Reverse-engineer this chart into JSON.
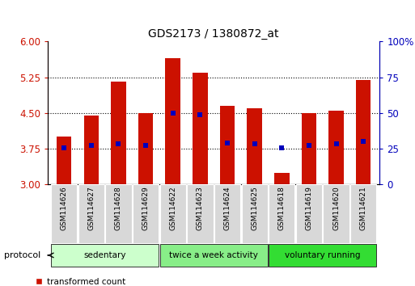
{
  "title": "GDS2173 / 1380872_at",
  "samples": [
    "GSM114626",
    "GSM114627",
    "GSM114628",
    "GSM114629",
    "GSM114622",
    "GSM114623",
    "GSM114624",
    "GSM114625",
    "GSM114618",
    "GSM114619",
    "GSM114620",
    "GSM114621"
  ],
  "transformed_count": [
    4.0,
    4.45,
    5.15,
    4.5,
    5.65,
    5.35,
    4.65,
    4.6,
    3.25,
    4.5,
    4.55,
    5.2
  ],
  "percentile_rank": [
    3.76,
    3.82,
    3.86,
    3.82,
    4.5,
    4.47,
    3.87,
    3.85,
    3.76,
    3.82,
    3.86,
    3.9
  ],
  "ylim_left": [
    3,
    6
  ],
  "ylim_right": [
    0,
    100
  ],
  "yticks_left": [
    3,
    3.75,
    4.5,
    5.25,
    6
  ],
  "yticks_right": [
    0,
    25,
    50,
    75,
    100
  ],
  "bar_color": "#cc1100",
  "dot_color": "#0000bb",
  "groups": [
    {
      "label": "sedentary",
      "start": 0,
      "end": 3,
      "color": "#ccffcc"
    },
    {
      "label": "twice a week activity",
      "start": 4,
      "end": 7,
      "color": "#88ee88"
    },
    {
      "label": "voluntary running",
      "start": 8,
      "end": 11,
      "color": "#33dd33"
    }
  ],
  "protocol_label": "protocol",
  "bar_width": 0.55,
  "base_value": 3.0,
  "bg_color": "#ffffff"
}
